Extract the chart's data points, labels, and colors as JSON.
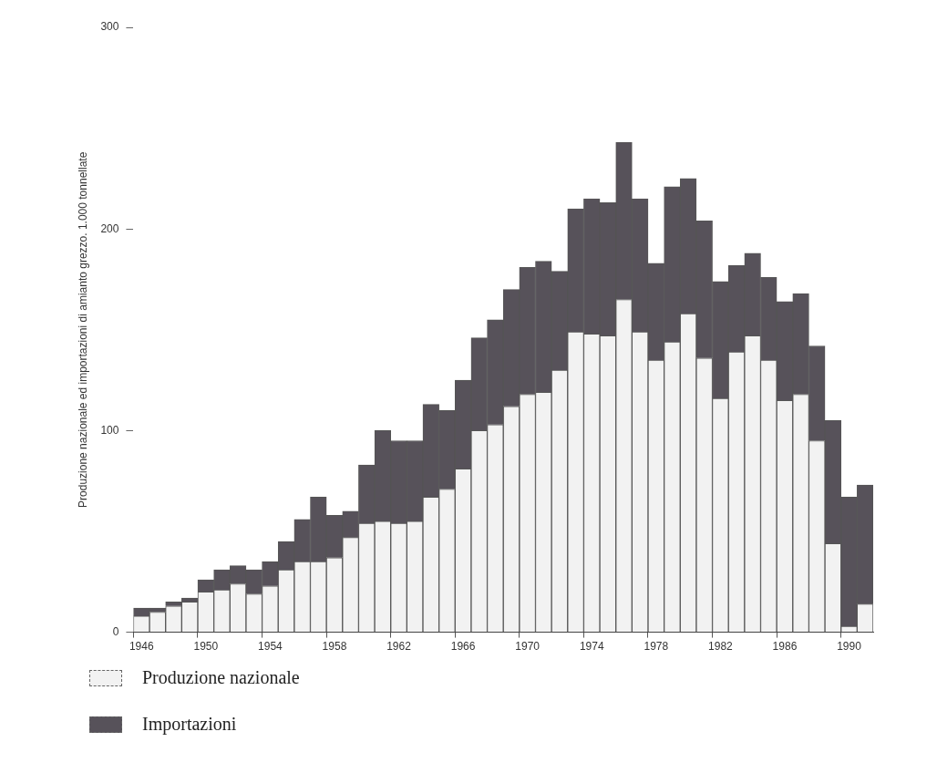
{
  "chart_data": {
    "type": "bar",
    "stacked": true,
    "ylabel": "Produzione nazionale ed importazioni di amianto grezzo. 1.000 tonnellate",
    "categories": [
      "1946",
      null,
      null,
      null,
      "1950",
      null,
      null,
      null,
      "1954",
      null,
      null,
      null,
      "1958",
      null,
      null,
      null,
      "1962",
      null,
      null,
      null,
      "1966",
      null,
      null,
      null,
      "1970",
      null,
      null,
      null,
      "1974",
      null,
      null,
      null,
      "1978",
      null,
      null,
      null,
      "1982",
      null,
      null,
      null,
      "1986",
      null,
      null,
      null,
      "1990",
      null
    ],
    "series": [
      {
        "name": "Produzione nazionale",
        "color": "#f2f2f2",
        "values": [
          8,
          10,
          13,
          15,
          20,
          21,
          24,
          19,
          23,
          31,
          35,
          35,
          37,
          47,
          54,
          55,
          54,
          55,
          67,
          71,
          81,
          100,
          103,
          112,
          118,
          119,
          130,
          149,
          148,
          147,
          165,
          149,
          135,
          144,
          158,
          136,
          116,
          139,
          147,
          135,
          115,
          118,
          95,
          44,
          3,
          14
        ]
      },
      {
        "name": "Importazioni",
        "color": "#57525a",
        "values": [
          4,
          2,
          2,
          2,
          6,
          10,
          9,
          12,
          12,
          14,
          21,
          32,
          21,
          13,
          29,
          45,
          41,
          40,
          46,
          39,
          44,
          46,
          52,
          58,
          63,
          65,
          49,
          61,
          67,
          66,
          78,
          66,
          48,
          77,
          67,
          68,
          58,
          43,
          41,
          41,
          49,
          50,
          47,
          61,
          64,
          59
        ]
      }
    ],
    "ylim": [
      0,
      300
    ],
    "yticks": [
      0,
      100,
      200,
      300
    ],
    "grid": false,
    "legend": "bottom left"
  }
}
